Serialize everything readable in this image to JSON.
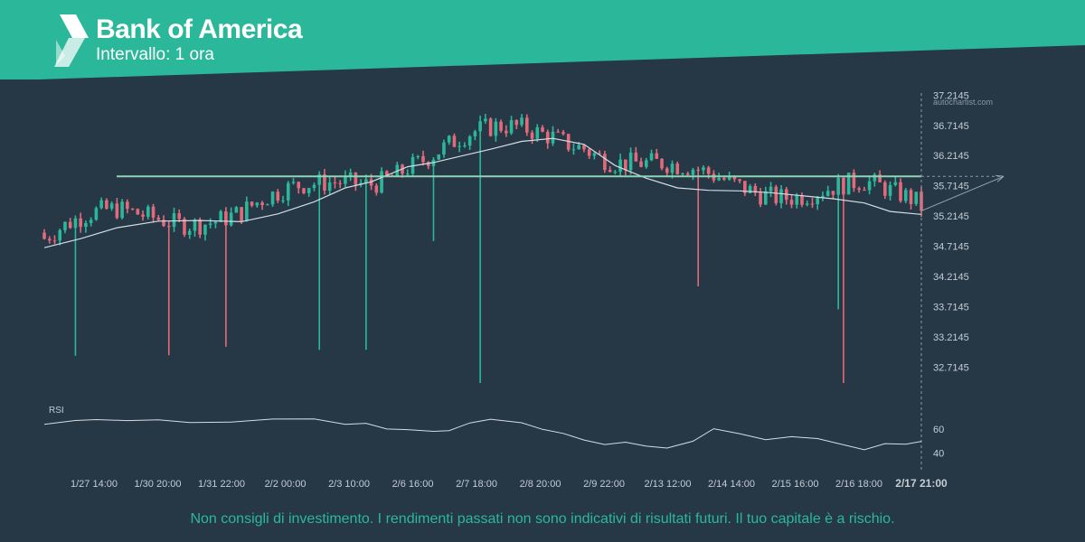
{
  "header": {
    "title": "Bank of America",
    "subtitle": "Intervallo: 1 ora",
    "logo": "autochartist-logo"
  },
  "watermark": "autochartist.com",
  "colors": {
    "background": "#263746",
    "banner": "#2bb89a",
    "up_candle": "#2bb89a",
    "down_candle": "#e36a7b",
    "level_line": "#8fd4b0",
    "moving_average": "#d5dde3",
    "axis_text": "#c5cdd4",
    "disclaimer": "#2bb89a"
  },
  "disclaimer": "Non consigli di investimento. I rendimenti passati non sono indicativi di risultati futuri. Il tuo capitale è a rischio.",
  "chart_data": {
    "type": "candlestick",
    "price_axis": {
      "ticks": [
        37.2145,
        36.7145,
        36.2145,
        35.7145,
        35.2145,
        34.7145,
        34.2145,
        33.7145,
        33.2145,
        32.7145
      ],
      "tick_labels": [
        "37.2145",
        "36.7145",
        "36.2145",
        "35.7145",
        "35.2145",
        "34.7145",
        "34.2145",
        "33.7145",
        "33.2145",
        "32.7145"
      ],
      "range": [
        32.45,
        37.25
      ]
    },
    "time_axis": {
      "labels": [
        "1/27 14:00",
        "1/30 20:00",
        "1/31 22:00",
        "2/2 00:00",
        "2/3 10:00",
        "2/6 16:00",
        "2/7 18:00",
        "2/8 20:00",
        "2/9 22:00",
        "2/13 12:00",
        "2/14 14:00",
        "2/15 16:00",
        "2/16 18:00"
      ],
      "last_label": "2/17 21:00",
      "bar_count": 170
    },
    "level_line": {
      "price": 35.87
    },
    "forecast_arrow": {
      "from_price": 35.3,
      "to_price": 35.87
    },
    "moving_average": [
      {
        "bar": 0,
        "price": 34.69
      },
      {
        "bar": 7,
        "price": 34.84
      },
      {
        "bar": 14,
        "price": 35.02
      },
      {
        "bar": 22,
        "price": 35.13
      },
      {
        "bar": 30,
        "price": 35.14
      },
      {
        "bar": 38,
        "price": 35.12
      },
      {
        "bar": 45,
        "price": 35.25
      },
      {
        "bar": 52,
        "price": 35.45
      },
      {
        "bar": 58,
        "price": 35.68
      },
      {
        "bar": 63,
        "price": 35.78
      },
      {
        "bar": 70,
        "price": 36.03
      },
      {
        "bar": 75,
        "price": 36.1
      },
      {
        "bar": 80,
        "price": 36.2
      },
      {
        "bar": 86,
        "price": 36.32
      },
      {
        "bar": 92,
        "price": 36.45
      },
      {
        "bar": 98,
        "price": 36.5
      },
      {
        "bar": 104,
        "price": 36.4
      },
      {
        "bar": 110,
        "price": 36.05
      },
      {
        "bar": 116,
        "price": 35.84
      },
      {
        "bar": 122,
        "price": 35.68
      },
      {
        "bar": 128,
        "price": 35.64
      },
      {
        "bar": 134,
        "price": 35.63
      },
      {
        "bar": 140,
        "price": 35.6
      },
      {
        "bar": 146,
        "price": 35.55
      },
      {
        "bar": 152,
        "price": 35.5
      },
      {
        "bar": 158,
        "price": 35.43
      },
      {
        "bar": 163,
        "price": 35.29
      },
      {
        "bar": 169,
        "price": 35.24
      }
    ],
    "wick_lows": [
      {
        "bar": 6,
        "price": 32.9
      },
      {
        "bar": 24,
        "price": 32.91
      },
      {
        "bar": 35,
        "price": 33.05
      },
      {
        "bar": 53,
        "price": 33.0
      },
      {
        "bar": 62,
        "price": 33.0
      },
      {
        "bar": 75,
        "price": 34.8
      },
      {
        "bar": 84,
        "price": 32.45
      },
      {
        "bar": 126,
        "price": 34.05
      },
      {
        "bar": 153,
        "price": 33.67
      },
      {
        "bar": 154,
        "price": 32.45
      }
    ],
    "rsi": {
      "label": "RSI",
      "ticks": [
        60,
        40
      ],
      "tick_labels": [
        "60",
        "40"
      ],
      "range": [
        30,
        75
      ],
      "points": [
        {
          "bar": 0,
          "value": 64
        },
        {
          "bar": 6,
          "value": 68
        },
        {
          "bar": 10,
          "value": 69
        },
        {
          "bar": 16,
          "value": 66
        },
        {
          "bar": 22,
          "value": 68
        },
        {
          "bar": 28,
          "value": 66
        },
        {
          "bar": 36,
          "value": 67
        },
        {
          "bar": 44,
          "value": 69
        },
        {
          "bar": 52,
          "value": 68
        },
        {
          "bar": 58,
          "value": 65
        },
        {
          "bar": 62,
          "value": 66
        },
        {
          "bar": 66,
          "value": 61
        },
        {
          "bar": 70,
          "value": 60
        },
        {
          "bar": 75,
          "value": 57
        },
        {
          "bar": 78,
          "value": 58
        },
        {
          "bar": 82,
          "value": 64
        },
        {
          "bar": 86,
          "value": 67
        },
        {
          "bar": 92,
          "value": 66
        },
        {
          "bar": 96,
          "value": 60
        },
        {
          "bar": 100,
          "value": 56
        },
        {
          "bar": 104,
          "value": 50
        },
        {
          "bar": 108,
          "value": 46
        },
        {
          "bar": 112,
          "value": 48
        },
        {
          "bar": 116,
          "value": 45
        },
        {
          "bar": 120,
          "value": 44
        },
        {
          "bar": 125,
          "value": 51
        },
        {
          "bar": 129,
          "value": 61
        },
        {
          "bar": 134,
          "value": 55
        },
        {
          "bar": 139,
          "value": 52
        },
        {
          "bar": 144,
          "value": 54
        },
        {
          "bar": 149,
          "value": 51
        },
        {
          "bar": 154,
          "value": 48
        },
        {
          "bar": 158,
          "value": 44
        },
        {
          "bar": 162,
          "value": 49
        },
        {
          "bar": 166,
          "value": 48
        },
        {
          "bar": 169,
          "value": 51
        }
      ]
    }
  }
}
